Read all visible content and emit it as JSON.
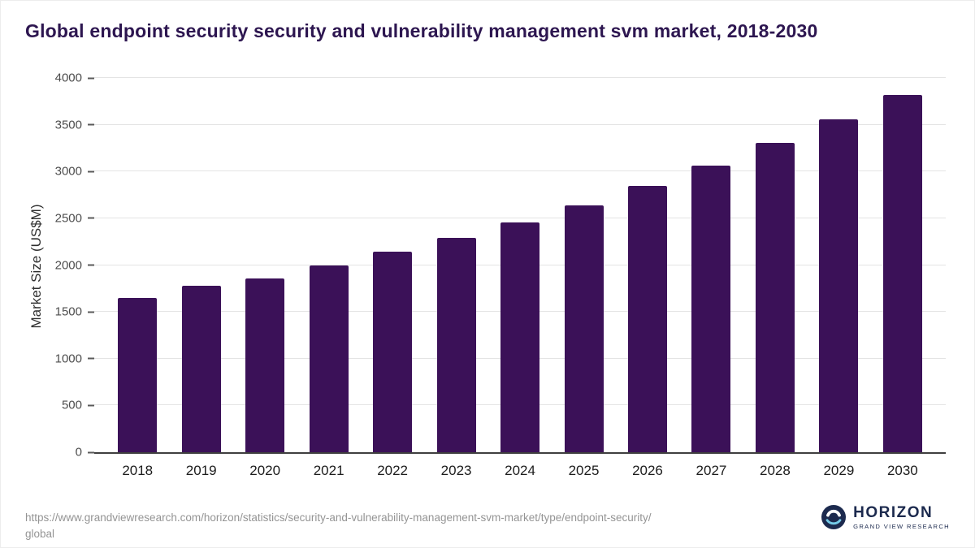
{
  "chart_data": {
    "type": "bar",
    "title": "Global endpoint security security and vulnerability management svm market, 2018-2030",
    "categories": [
      "2018",
      "2019",
      "2020",
      "2021",
      "2022",
      "2023",
      "2024",
      "2025",
      "2026",
      "2027",
      "2028",
      "2029",
      "2030"
    ],
    "values": [
      1650,
      1780,
      1860,
      2000,
      2140,
      2290,
      2455,
      2640,
      2845,
      3065,
      3310,
      3555,
      3820
    ],
    "xlabel": "",
    "ylabel": "Market Size (US$M)",
    "ylim": [
      0,
      4000
    ],
    "yticks": [
      0,
      500,
      1000,
      1500,
      2000,
      2500,
      3000,
      3500,
      4000
    ],
    "grid": "horizontal",
    "legend": "none",
    "bar_color": "#3b1158"
  },
  "footer": {
    "url_lines": [
      "https://www.grandviewresearch.com/horizon/statistics/security-and-vulnerability-management-svm-market/type/endpoint-security/",
      "global"
    ]
  },
  "logo": {
    "name": "HORIZON",
    "subtitle": "GRAND VIEW RESEARCH"
  },
  "colors": {
    "bar": "#3b1158",
    "title": "#2d1650",
    "axis_text": "#4d4d4d",
    "grid": "#e4e4e4",
    "baseline": "#3f3f3f",
    "xlabel": "#1c1c1c",
    "footer": "#949494",
    "navy": "#1c2a4e",
    "accent": "#74cbe8"
  }
}
